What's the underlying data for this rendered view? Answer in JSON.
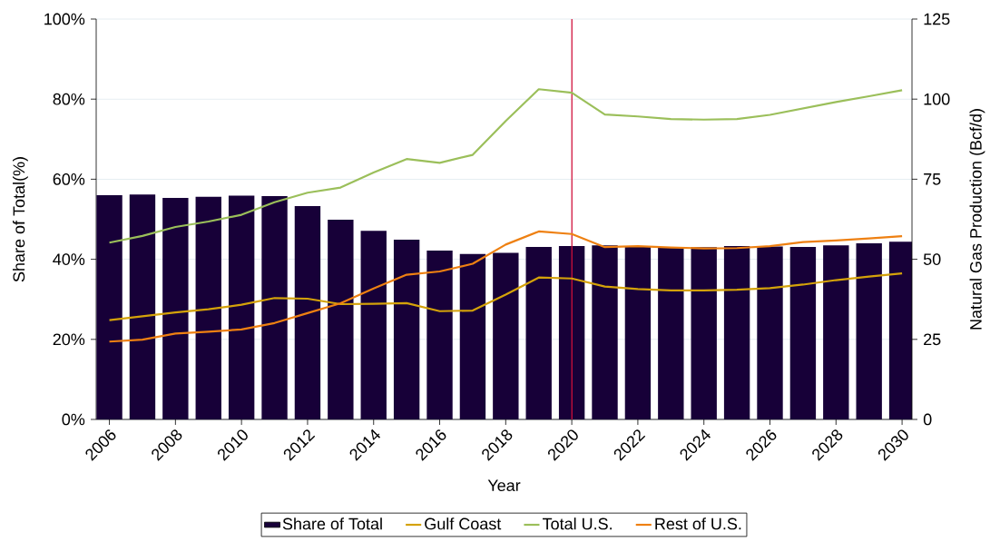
{
  "chart_data": {
    "type": "bar",
    "xlabel": "Year",
    "ylabel": "Share of Total(%)",
    "y2label": "Natural Gas Production (Bcf/d)",
    "x": [
      2006,
      2007,
      2008,
      2009,
      2010,
      2011,
      2012,
      2013,
      2014,
      2015,
      2016,
      2017,
      2018,
      2019,
      2020,
      2021,
      2022,
      2023,
      2024,
      2025,
      2026,
      2027,
      2028,
      2029,
      2030
    ],
    "series": [
      {
        "name": "Share of Total",
        "axis": "y",
        "color": "#170038",
        "values": [
          56.0,
          56.2,
          55.3,
          55.6,
          55.9,
          55.8,
          53.3,
          49.9,
          47.1,
          44.9,
          42.2,
          41.3,
          41.6,
          43.1,
          43.3,
          43.5,
          43.2,
          42.9,
          43.0,
          43.3,
          43.2,
          43.1,
          43.5,
          44.0,
          44.4
        ]
      },
      {
        "name": "Gulf Coast",
        "type": "line",
        "axis": "y2",
        "color": "#d4a20a",
        "values": [
          31.0,
          32.2,
          33.4,
          34.4,
          35.8,
          37.9,
          37.7,
          36.0,
          36.1,
          36.3,
          33.8,
          34.0,
          39.0,
          44.3,
          44.0,
          41.5,
          40.7,
          40.3,
          40.3,
          40.5,
          41.0,
          42.1,
          43.5,
          44.6,
          45.6
        ]
      },
      {
        "name": "Total U.S.",
        "type": "line",
        "axis": "y2",
        "color": "#9bbf5a",
        "values": [
          55.2,
          57.3,
          60.1,
          61.8,
          63.9,
          67.8,
          70.8,
          72.4,
          77.1,
          81.3,
          80.1,
          82.6,
          93.2,
          103.1,
          102.0,
          95.2,
          94.6,
          93.8,
          93.6,
          93.8,
          95.1,
          97.1,
          99.1,
          100.9,
          102.8
        ]
      },
      {
        "name": "Rest of U.S.",
        "type": "line",
        "axis": "y2",
        "color": "#ee8012",
        "values": [
          24.3,
          24.9,
          26.8,
          27.4,
          28.1,
          30.1,
          33.2,
          36.3,
          40.9,
          45.2,
          46.2,
          48.6,
          54.6,
          58.7,
          57.9,
          53.8,
          54.1,
          53.7,
          53.4,
          53.5,
          54.1,
          55.4,
          55.9,
          56.5,
          57.2
        ]
      }
    ],
    "xlim": [
      2005.6,
      2030.3
    ],
    "xticks": [
      2006,
      2008,
      2010,
      2012,
      2014,
      2016,
      2018,
      2020,
      2022,
      2024,
      2026,
      2028,
      2030
    ],
    "ylim": [
      0,
      100
    ],
    "yticks": [
      {
        "value": 0,
        "label": "0%"
      },
      {
        "value": 20,
        "label": "20%"
      },
      {
        "value": 40,
        "label": "40%"
      },
      {
        "value": 60,
        "label": "60%"
      },
      {
        "value": 80,
        "label": "80%"
      },
      {
        "value": 100,
        "label": "100%"
      }
    ],
    "y2lim": [
      0,
      125
    ],
    "y2ticks": [
      0,
      25,
      50,
      75,
      100,
      125
    ],
    "ref_lines": [
      {
        "axis": "x",
        "value": 2020,
        "color": "#d0103a"
      }
    ],
    "grid": "y",
    "legend": "bottom",
    "line_style": "solid",
    "marker": "none"
  }
}
